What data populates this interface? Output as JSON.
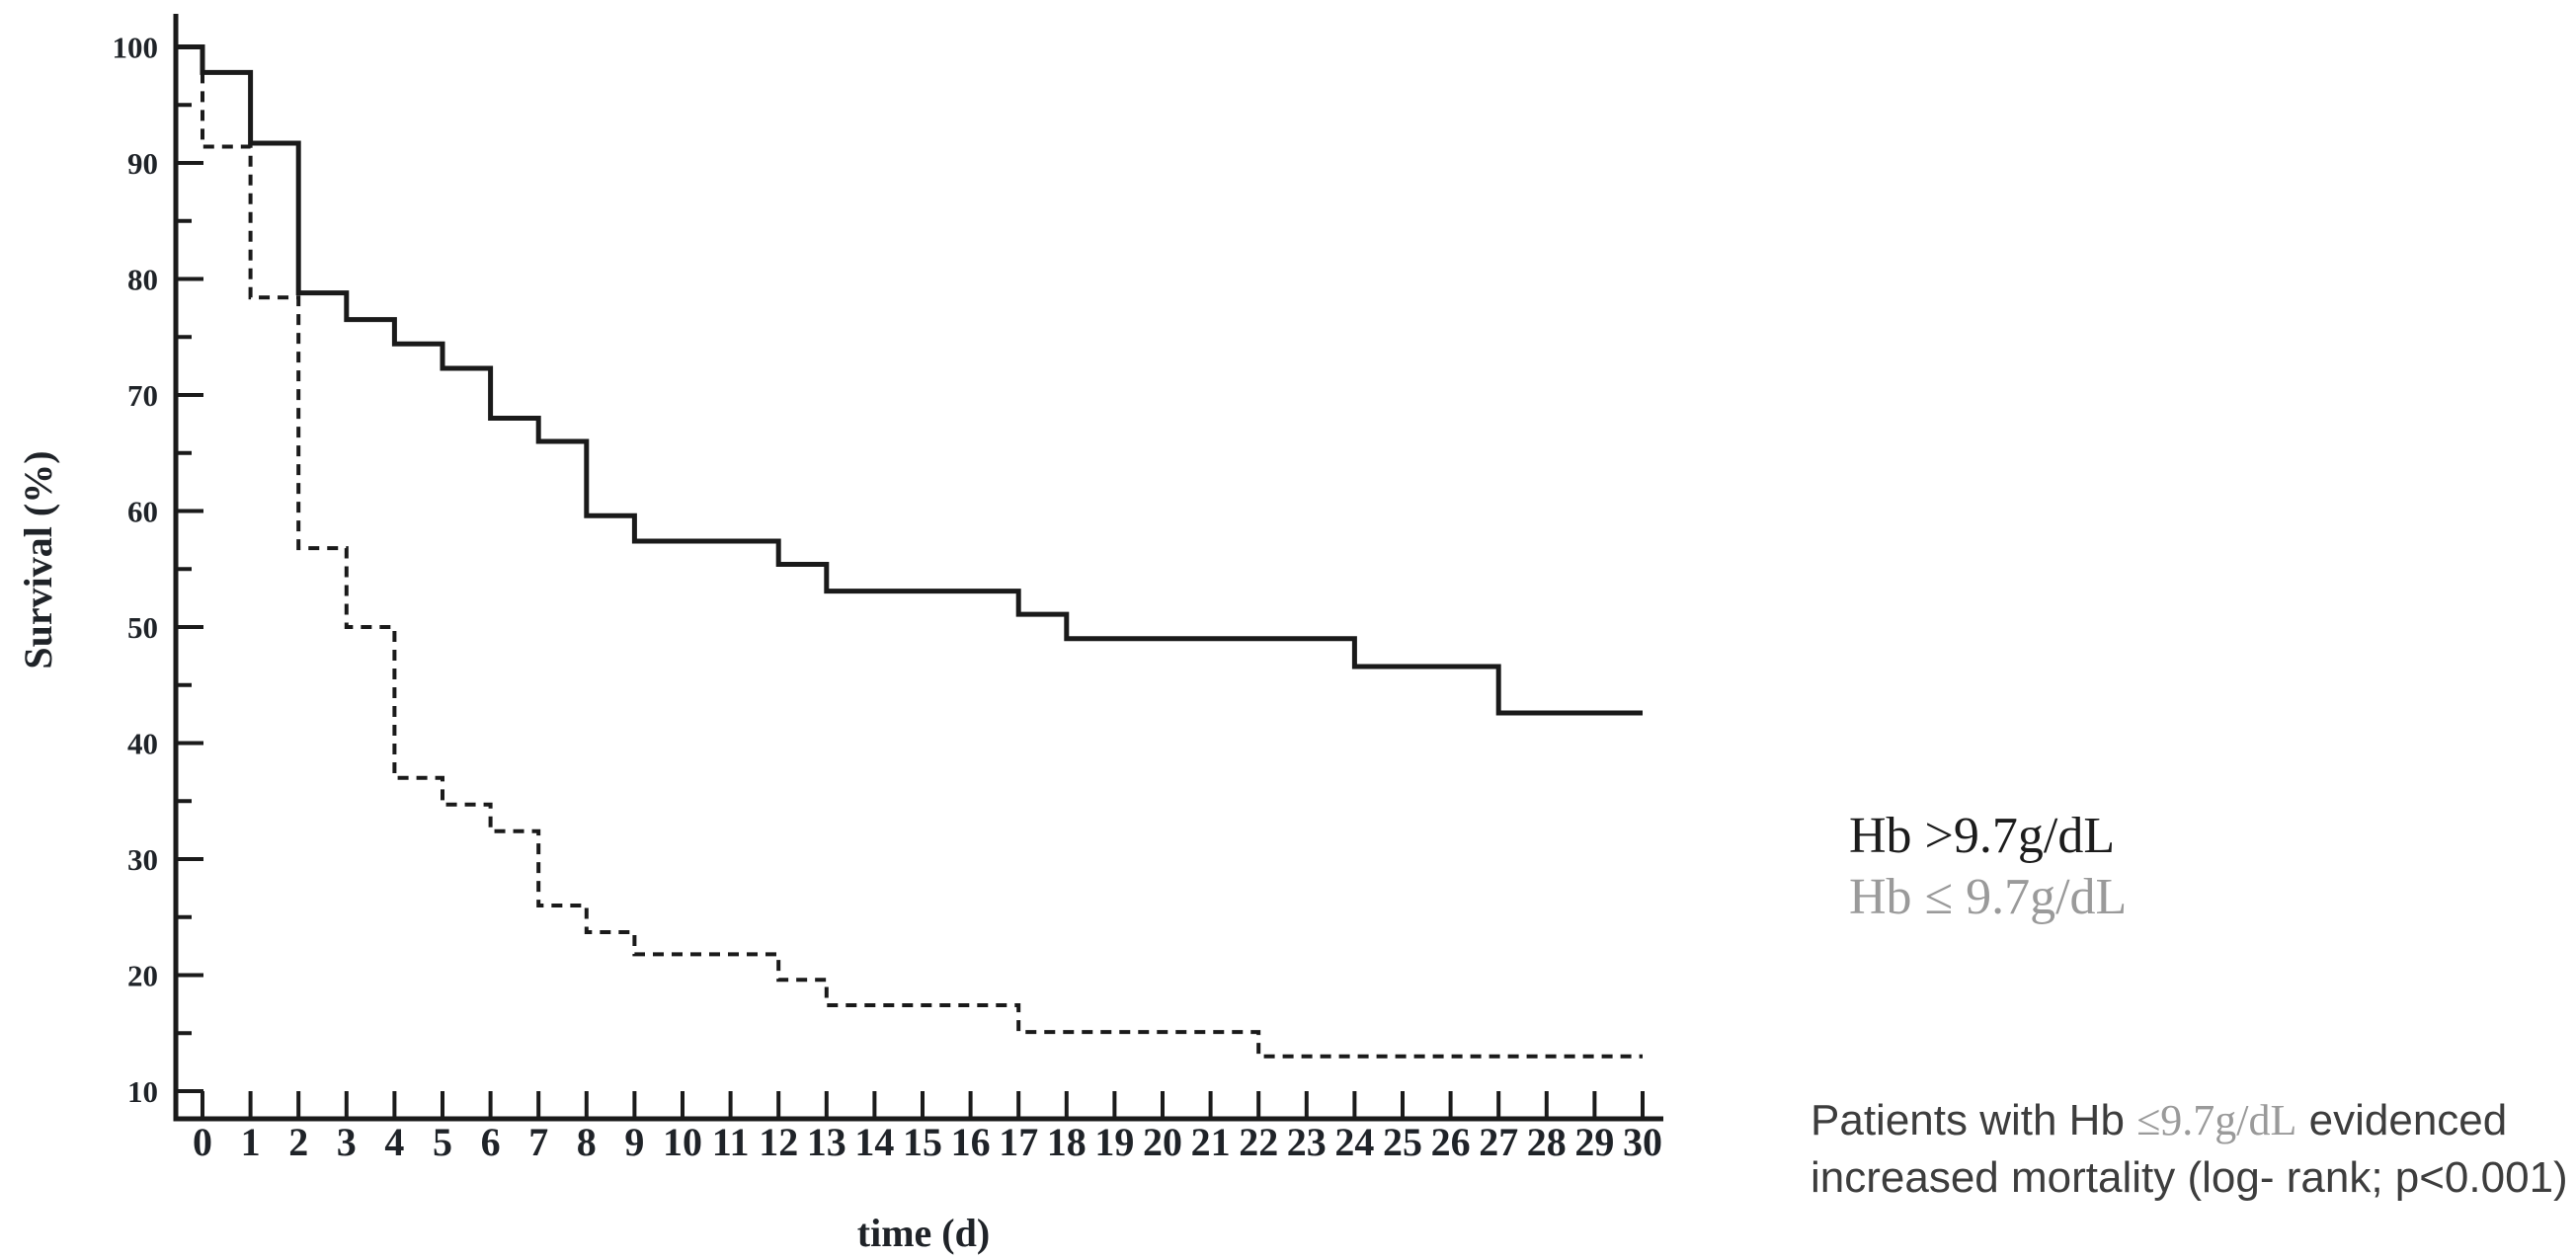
{
  "colors": {
    "curve": "#1a1a1a",
    "axis": "#1a1a1a",
    "tick_text": "#1f2328",
    "legend_dark": "#1c1c1c",
    "legend_gray": "#9a9a9a",
    "note_text": "#3d3d3d"
  },
  "legend": {
    "line1": "Hb >9.7g/dL",
    "line2": "Hb ≤ 9.7g/dL"
  },
  "annotation": {
    "line1_prefix": "Patients with Hb ",
    "line1_highlight": "≤9.7g/dL",
    "line1_suffix": " evidenced",
    "line2": "increased mortality (log- rank; p<0.001)"
  },
  "chart_data": {
    "type": "line",
    "subtype": "kaplan-meier-step",
    "title": "",
    "xlabel": "time (d)",
    "ylabel": "Survival (%)",
    "xlim": [
      0,
      30
    ],
    "ylim": [
      10,
      100
    ],
    "x_ticks": [
      0,
      1,
      2,
      3,
      4,
      5,
      6,
      7,
      8,
      9,
      10,
      11,
      12,
      13,
      14,
      15,
      16,
      17,
      18,
      19,
      20,
      21,
      22,
      23,
      24,
      25,
      26,
      27,
      28,
      29,
      30
    ],
    "y_ticks_major": [
      10,
      20,
      30,
      40,
      50,
      60,
      70,
      80,
      90,
      100
    ],
    "y_ticks_minor": [
      15,
      25,
      35,
      45,
      55,
      65,
      75,
      85,
      95
    ],
    "grid": false,
    "legend_position": "outside-right",
    "series": [
      {
        "name": "Hb >9.7g/dL",
        "style": "solid",
        "starts_at_axis": true,
        "end_x": 30,
        "steps": [
          [
            0,
            100.0
          ],
          [
            0,
            97.8
          ],
          [
            1,
            91.7
          ],
          [
            2,
            78.8
          ],
          [
            3,
            76.5
          ],
          [
            4,
            74.4
          ],
          [
            5,
            72.3
          ],
          [
            6,
            68.0
          ],
          [
            7,
            66.0
          ],
          [
            8,
            59.6
          ],
          [
            9,
            57.4
          ],
          [
            12,
            55.4
          ],
          [
            13,
            53.1
          ],
          [
            17,
            51.1
          ],
          [
            18,
            49.0
          ],
          [
            24,
            46.6
          ],
          [
            27,
            42.6
          ]
        ]
      },
      {
        "name": "Hb ≤ 9.7g/dL",
        "style": "dashed",
        "starts_at_axis": false,
        "end_x": 30,
        "steps": [
          [
            0,
            97.8
          ],
          [
            0,
            91.4
          ],
          [
            1,
            78.4
          ],
          [
            2,
            56.8
          ],
          [
            3,
            50.0
          ],
          [
            4,
            37.0
          ],
          [
            5,
            34.7
          ],
          [
            6,
            32.4
          ],
          [
            7,
            26.0
          ],
          [
            8,
            23.7
          ],
          [
            9,
            21.8
          ],
          [
            12,
            19.6
          ],
          [
            13,
            17.4
          ],
          [
            17,
            15.1
          ],
          [
            22,
            13.0
          ]
        ]
      }
    ]
  }
}
